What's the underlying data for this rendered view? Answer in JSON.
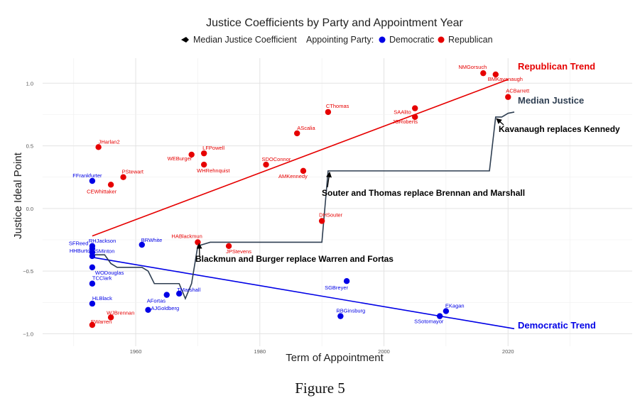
{
  "caption": "Figure 5",
  "chart_data": {
    "type": "scatter",
    "title": "Justice Coefficients by Party and Appointment Year",
    "xlabel": "Term of Appointment",
    "ylabel": "Justice Ideal Point",
    "xlim": [
      1945,
      2040
    ],
    "ylim": [
      -1.1,
      1.2
    ],
    "x_ticks": [
      1960,
      1980,
      2000,
      2020
    ],
    "y_ticks": [
      -1.0,
      -0.5,
      0.0,
      0.5,
      1.0
    ],
    "y_tick_labels": [
      "−1.0",
      "−0.5",
      "0.0",
      "0.5",
      "1.0"
    ],
    "grid": true,
    "legend": {
      "placement": "top",
      "median_label": "Median Justice Coefficient",
      "party_title": "Appointing Party:",
      "entries": [
        {
          "name": "Democratic",
          "color": "#0000e6"
        },
        {
          "name": "Republican",
          "color": "#e60000"
        }
      ]
    },
    "colors": {
      "Democratic": "#0000e6",
      "Republican": "#e60000",
      "median": "#2f3f52"
    },
    "justices": [
      {
        "name": "HLBlack",
        "year": 1953,
        "value": -0.76,
        "party": "Democratic"
      },
      {
        "name": "SFReed",
        "year": 1953,
        "value": -0.32,
        "party": "Democratic"
      },
      {
        "name": "FFrankfurter",
        "year": 1953,
        "value": 0.22,
        "party": "Democratic"
      },
      {
        "name": "WODouglas",
        "year": 1953,
        "value": -0.47,
        "party": "Democratic"
      },
      {
        "name": "RHJackson",
        "year": 1953,
        "value": -0.3,
        "party": "Democratic"
      },
      {
        "name": "HHBurton",
        "year": 1953,
        "value": -0.38,
        "party": "Democratic"
      },
      {
        "name": "TCClark",
        "year": 1953,
        "value": -0.6,
        "party": "Democratic"
      },
      {
        "name": "SMinton",
        "year": 1953,
        "value": -0.35,
        "party": "Democratic"
      },
      {
        "name": "EWarren",
        "year": 1953,
        "value": -0.93,
        "party": "Republican"
      },
      {
        "name": "JHarlan2",
        "year": 1954,
        "value": 0.49,
        "party": "Republican"
      },
      {
        "name": "WJBrennan",
        "year": 1956,
        "value": -0.87,
        "party": "Republican"
      },
      {
        "name": "CEWhittaker",
        "year": 1956,
        "value": 0.19,
        "party": "Republican"
      },
      {
        "name": "PStewart",
        "year": 1958,
        "value": 0.25,
        "party": "Republican"
      },
      {
        "name": "BRWhite",
        "year": 1961,
        "value": -0.29,
        "party": "Democratic"
      },
      {
        "name": "AJGoldberg",
        "year": 1962,
        "value": -0.81,
        "party": "Democratic"
      },
      {
        "name": "AFortas",
        "year": 1965,
        "value": -0.69,
        "party": "Democratic"
      },
      {
        "name": "TMarshall",
        "year": 1967,
        "value": -0.68,
        "party": "Democratic"
      },
      {
        "name": "WEBurger",
        "year": 1969,
        "value": 0.43,
        "party": "Republican"
      },
      {
        "name": "HABlackmun",
        "year": 1970,
        "value": -0.27,
        "party": "Republican"
      },
      {
        "name": "LFPowell",
        "year": 1971,
        "value": 0.44,
        "party": "Republican"
      },
      {
        "name": "WHRehnquist",
        "year": 1971,
        "value": 0.35,
        "party": "Republican"
      },
      {
        "name": "JPStevens",
        "year": 1975,
        "value": -0.3,
        "party": "Republican"
      },
      {
        "name": "SDOConnor",
        "year": 1981,
        "value": 0.35,
        "party": "Republican"
      },
      {
        "name": "AScalia",
        "year": 1986,
        "value": 0.6,
        "party": "Republican"
      },
      {
        "name": "AMKennedy",
        "year": 1987,
        "value": 0.3,
        "party": "Republican"
      },
      {
        "name": "DHSouter",
        "year": 1990,
        "value": -0.1,
        "party": "Republican"
      },
      {
        "name": "CThomas",
        "year": 1991,
        "value": 0.77,
        "party": "Republican"
      },
      {
        "name": "RBGinsburg",
        "year": 1993,
        "value": -0.86,
        "party": "Democratic"
      },
      {
        "name": "SGBreyer",
        "year": 1994,
        "value": -0.58,
        "party": "Democratic"
      },
      {
        "name": "JGRoberts",
        "year": 2005,
        "value": 0.73,
        "party": "Republican"
      },
      {
        "name": "SAAlito",
        "year": 2005,
        "value": 0.8,
        "party": "Republican"
      },
      {
        "name": "SSotomayor",
        "year": 2009,
        "value": -0.86,
        "party": "Democratic"
      },
      {
        "name": "EKagan",
        "year": 2010,
        "value": -0.82,
        "party": "Democratic"
      },
      {
        "name": "NMGorsuch",
        "year": 2016,
        "value": 1.08,
        "party": "Republican"
      },
      {
        "name": "BMKavanaugh",
        "year": 2018,
        "value": 1.07,
        "party": "Republican"
      },
      {
        "name": "ACBarrett",
        "year": 2020,
        "value": 0.89,
        "party": "Republican"
      }
    ],
    "median_series": {
      "name": "Median Justice",
      "points": [
        [
          1953,
          -0.37
        ],
        [
          1954,
          -0.37
        ],
        [
          1955,
          -0.37
        ],
        [
          1956,
          -0.44
        ],
        [
          1957,
          -0.47
        ],
        [
          1958,
          -0.47
        ],
        [
          1959,
          -0.47
        ],
        [
          1961,
          -0.47
        ],
        [
          1962,
          -0.5
        ],
        [
          1963,
          -0.6
        ],
        [
          1967,
          -0.6
        ],
        [
          1968,
          -0.72
        ],
        [
          1969,
          -0.6
        ],
        [
          1970,
          -0.3
        ],
        [
          1972,
          -0.27
        ],
        [
          1990,
          -0.27
        ],
        [
          1991,
          0.3
        ],
        [
          2017,
          0.3
        ],
        [
          2018,
          0.73
        ],
        [
          2019,
          0.73
        ],
        [
          2020,
          0.76
        ],
        [
          2021,
          0.77
        ]
      ]
    },
    "trends": [
      {
        "name": "Republican Trend",
        "party": "Republican",
        "from": [
          1953,
          -0.22
        ],
        "to": [
          2020,
          1.03
        ]
      },
      {
        "name": "Democratic Trend",
        "party": "Democratic",
        "from": [
          1953,
          -0.39
        ],
        "to": [
          2021,
          -0.96
        ]
      }
    ],
    "annotations": [
      {
        "text": "Blackmun and Burger replace Warren and Fortas",
        "x": 1970,
        "y": -0.27
      },
      {
        "text": "Souter and Thomas replace Brennan and Marshall",
        "x": 1991,
        "y": 0.3
      },
      {
        "text": "Kavanaugh replaces Kennedy",
        "x": 2018,
        "y": 0.73
      }
    ]
  }
}
